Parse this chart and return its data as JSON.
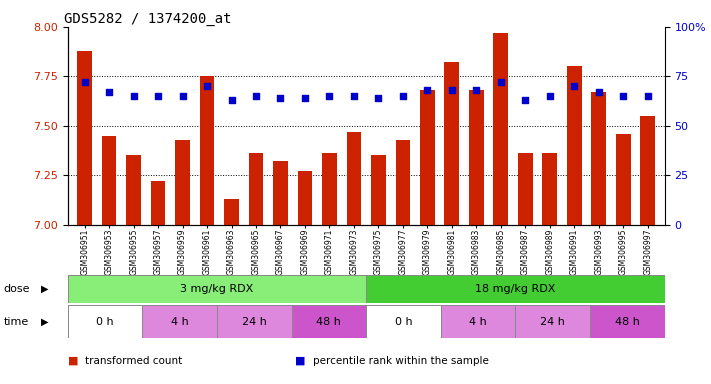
{
  "title": "GDS5282 / 1374200_at",
  "samples": [
    "GSM306951",
    "GSM306953",
    "GSM306955",
    "GSM306957",
    "GSM306959",
    "GSM306961",
    "GSM306963",
    "GSM306965",
    "GSM306967",
    "GSM306969",
    "GSM306971",
    "GSM306973",
    "GSM306975",
    "GSM306977",
    "GSM306979",
    "GSM306981",
    "GSM306983",
    "GSM306985",
    "GSM306987",
    "GSM306989",
    "GSM306991",
    "GSM306993",
    "GSM306995",
    "GSM306997"
  ],
  "transformed_count": [
    7.88,
    7.45,
    7.35,
    7.22,
    7.43,
    7.75,
    7.13,
    7.36,
    7.32,
    7.27,
    7.36,
    7.47,
    7.35,
    7.43,
    7.68,
    7.82,
    7.68,
    7.97,
    7.36,
    7.36,
    7.8,
    7.67,
    7.46,
    7.55
  ],
  "percentile_rank": [
    72,
    67,
    65,
    65,
    65,
    70,
    63,
    65,
    64,
    64,
    65,
    65,
    64,
    65,
    68,
    68,
    68,
    72,
    63,
    65,
    70,
    67,
    65,
    65
  ],
  "ylim_left": [
    7.0,
    8.0
  ],
  "ylim_right": [
    0,
    100
  ],
  "yticks_left": [
    7.0,
    7.25,
    7.5,
    7.75,
    8.0
  ],
  "yticks_right": [
    0,
    25,
    50,
    75,
    100
  ],
  "bar_color": "#cc2200",
  "dot_color": "#0000cc",
  "title_fontsize": 10,
  "axis_label_color_left": "#cc2200",
  "axis_label_color_right": "#0000cc",
  "dose_colors": [
    "#88ee77",
    "#44cc33"
  ],
  "dose_labels": [
    "3 mg/kg RDX",
    "18 mg/kg RDX"
  ],
  "time_colors": [
    "#ffffff",
    "#dd88dd",
    "#dd88dd",
    "#cc55cc",
    "#ffffff",
    "#dd88dd",
    "#dd88dd",
    "#cc55cc"
  ],
  "time_labels": [
    "0 h",
    "4 h",
    "24 h",
    "48 h",
    "0 h",
    "4 h",
    "24 h",
    "48 h"
  ],
  "time_n_samples": [
    3,
    3,
    3,
    3,
    3,
    3,
    3,
    3
  ],
  "legend_labels": [
    "transformed count",
    "percentile rank within the sample"
  ],
  "legend_colors": [
    "#cc2200",
    "#0000cc"
  ],
  "grid_yticks": [
    7.25,
    7.5,
    7.75
  ],
  "background_color": "#ffffff"
}
